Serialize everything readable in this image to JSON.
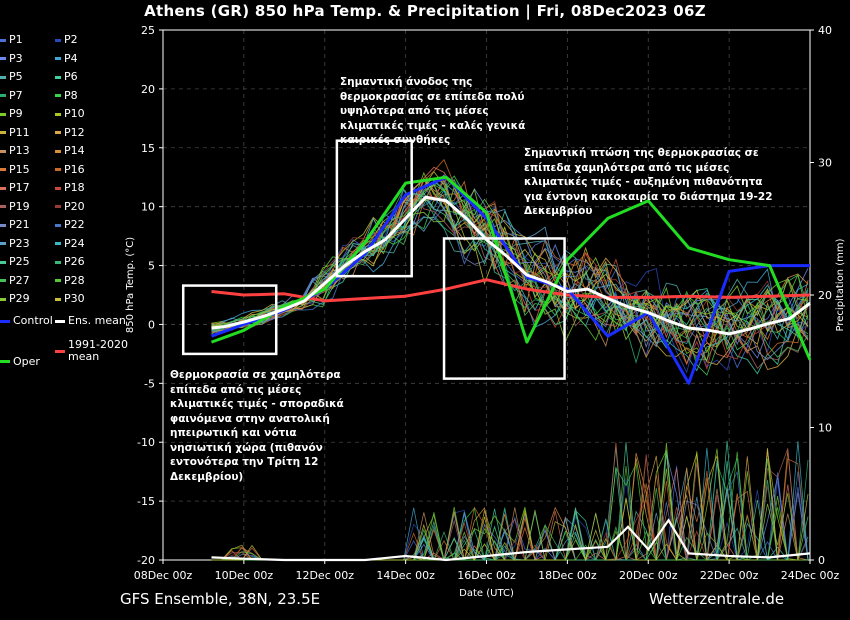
{
  "header": {
    "title": "Athens  (GR)  850 hPa Temp. & Precipitation | Fri, 08Dec2023 06Z"
  },
  "footer": {
    "left": "GFS Ensemble, 38N, 23.5E",
    "right": "Wetterzentrale.de"
  },
  "legend": {
    "items": [
      {
        "label": "P1",
        "color": "#4b6fd8"
      },
      {
        "label": "P2",
        "color": "#2948b8"
      },
      {
        "label": "P3",
        "color": "#6a8be8"
      },
      {
        "label": "P4",
        "color": "#3fa7d6"
      },
      {
        "label": "P5",
        "color": "#52b0a8"
      },
      {
        "label": "P6",
        "color": "#3fd0a0"
      },
      {
        "label": "P7",
        "color": "#28b070"
      },
      {
        "label": "P8",
        "color": "#3cd24a"
      },
      {
        "label": "P9",
        "color": "#7acd2a"
      },
      {
        "label": "P10",
        "color": "#a8c82a"
      },
      {
        "label": "P11",
        "color": "#c8b43a"
      },
      {
        "label": "P12",
        "color": "#d8a84a"
      },
      {
        "label": "P13",
        "color": "#c89060"
      },
      {
        "label": "P14",
        "color": "#d8903a"
      },
      {
        "label": "P15",
        "color": "#d87a3a"
      },
      {
        "label": "P16",
        "color": "#c86a2a"
      },
      {
        "label": "P17",
        "color": "#d8705a"
      },
      {
        "label": "P18",
        "color": "#c84a3a"
      },
      {
        "label": "P19",
        "color": "#a86060"
      },
      {
        "label": "P20",
        "color": "#983a3a"
      },
      {
        "label": "P21",
        "color": "#7888c8"
      },
      {
        "label": "P22",
        "color": "#4a78c8"
      },
      {
        "label": "P23",
        "color": "#5aa0c8"
      },
      {
        "label": "P24",
        "color": "#3ab8c8"
      },
      {
        "label": "P25",
        "color": "#4ac898"
      },
      {
        "label": "P26",
        "color": "#3ab878"
      },
      {
        "label": "P27",
        "color": "#48c058"
      },
      {
        "label": "P28",
        "color": "#58c83a"
      },
      {
        "label": "P29",
        "color": "#88c83a"
      },
      {
        "label": "P30",
        "color": "#c8c03a"
      },
      {
        "label": "Control",
        "color": "#1a2cff"
      },
      {
        "label": "Ens. mean",
        "color": "#ffffff"
      },
      {
        "label": "1991-2020 mean",
        "color": "#ff4040"
      },
      {
        "label": "Oper",
        "color": "#22dd22"
      }
    ]
  },
  "annotations": {
    "a1": "Σημαντική άνοδος της θερμοκρασίας σε επίπεδα πολύ υψηλότερα από τις μέσες κλιματικές τιμές - καλές γενικά καιρικές συνθήκες",
    "a2": "Σημαντική πτώση της θερμοκρασίας σε επίπεδα χαμηλότερα από τις μέσες κλιματικές τιμές - αυξημένη πιθανότητα για έντονη κακοκαιρία το διάστημα 19-22 Δεκεμβρίου",
    "a3": "Θερμοκρασία σε χαμηλότερα επίπεδα από τις μέσες κλιματικές τιμές - σποραδικά φαινόμενα στην ανατολική ηπειρωτική και νότια νησιωτική χώρα (πιθανόν εντονότερα την Τρίτη 12 Δεκεμβρίου)"
  },
  "highlight_boxes": [
    {
      "label": "box-cold-start",
      "x": [
        0.5,
        2.8
      ],
      "y": [
        -2.5,
        3.3
      ]
    },
    {
      "label": "box-warm-peak",
      "x": [
        4.3,
        6.15
      ],
      "y": [
        4.1,
        15.6
      ]
    },
    {
      "label": "box-cold-late",
      "x": [
        6.95,
        9.93
      ],
      "y": [
        -4.6,
        7.3
      ]
    }
  ],
  "chart_data": {
    "type": "line",
    "title": "Athens  (GR)  850 hPa Temp. & Precipitation | Fri, 08Dec2023 06Z",
    "xlabel": "Date (UTC)",
    "ylabel": "850 hPa Temp. (°C)",
    "y2label": "Precipitation (mm)",
    "x_ticks": [
      "08Dec 00z",
      "10Dec 00z",
      "12Dec 00z",
      "14Dec 00z",
      "16Dec 00z",
      "18Dec 00z",
      "20Dec 00z",
      "22Dec 00z",
      "24Dec 00z"
    ],
    "x_range_days": [
      0,
      16
    ],
    "ylim": [
      -20,
      25
    ],
    "yticks": [
      -20,
      -15,
      -10,
      -5,
      0,
      5,
      10,
      15,
      20,
      25
    ],
    "y2lim": [
      0,
      40
    ],
    "y2ticks": [
      0,
      10,
      20,
      30,
      40
    ],
    "grid": true,
    "legend_position": "left-outside",
    "x_units": "days since 08Dec 00z",
    "series": [
      {
        "name": "Ens. mean",
        "x": [
          1.2,
          1.5,
          2,
          2.5,
          3,
          3.5,
          4,
          4.5,
          5,
          5.5,
          6,
          6.5,
          7,
          7.5,
          8,
          8.5,
          9,
          9.5,
          10,
          10.5,
          11,
          11.5,
          12,
          12.5,
          13,
          13.5,
          14,
          14.5,
          15,
          15.5,
          16
        ],
        "y": [
          -0.3,
          -0.2,
          0.2,
          0.7,
          1.3,
          2.0,
          3.5,
          5.0,
          6.2,
          7.2,
          9.0,
          10.8,
          10.5,
          9.0,
          7.2,
          5.8,
          4.2,
          3.6,
          2.8,
          3.0,
          2.2,
          1.5,
          1.0,
          0.3,
          -0.3,
          -0.5,
          -0.8,
          -0.4,
          0.1,
          0.5,
          1.8
        ]
      },
      {
        "name": "1991-2020 mean",
        "x": [
          1.2,
          2,
          3,
          4,
          5,
          6,
          7,
          8,
          9,
          10,
          11,
          12,
          13,
          14,
          15,
          16
        ],
        "y": [
          2.8,
          2.5,
          2.6,
          2.0,
          2.2,
          2.4,
          3.0,
          3.8,
          3.0,
          2.5,
          2.3,
          2.3,
          2.4,
          2.3,
          2.4,
          2.5
        ]
      },
      {
        "name": "Control",
        "x": [
          1.2,
          2,
          3,
          4,
          5,
          6,
          7,
          8,
          9,
          10,
          11,
          12,
          13,
          14,
          15,
          16
        ],
        "y": [
          -1.0,
          0.0,
          1.2,
          3.0,
          6.0,
          11.0,
          12.5,
          9.0,
          4.0,
          3.0,
          -1.0,
          1.0,
          -5.0,
          4.5,
          5.0,
          5.0
        ]
      },
      {
        "name": "Oper",
        "x": [
          1.2,
          2,
          3,
          4,
          5,
          6,
          7,
          8,
          9,
          10,
          11,
          12,
          13,
          14,
          15,
          16
        ],
        "y": [
          -1.5,
          -0.5,
          1.5,
          3.0,
          7.0,
          12.0,
          12.5,
          9.5,
          -1.5,
          5.5,
          9.0,
          10.5,
          6.5,
          5.5,
          5.0,
          -3.0
        ]
      }
    ],
    "precip_mean": {
      "x": [
        1.2,
        2,
        3,
        4,
        5,
        6,
        7,
        8,
        9,
        10,
        11,
        11.5,
        12,
        12.5,
        13,
        13.5,
        14,
        15,
        16
      ],
      "y": [
        0.2,
        0.1,
        0.0,
        0.0,
        0.0,
        0.3,
        0.0,
        0.3,
        0.6,
        0.8,
        1.0,
        2.5,
        0.8,
        3.0,
        0.5,
        0.4,
        0.3,
        0.2,
        0.5
      ]
    }
  }
}
